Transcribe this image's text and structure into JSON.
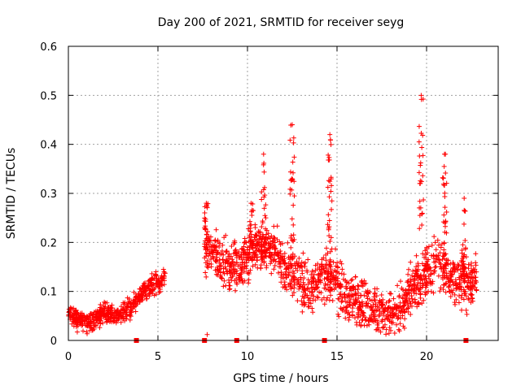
{
  "chart_data": {
    "type": "scatter",
    "title": "Day 200 of 2021, SRMTID for receiver seyg",
    "xlabel": "GPS time / hours",
    "ylabel": "SRMTID / TECUs",
    "xlim": [
      0,
      24
    ],
    "ylim": [
      0,
      0.6
    ],
    "xticks": [
      0,
      5,
      10,
      15,
      20
    ],
    "yticks": [
      0,
      0.1,
      0.2,
      0.3,
      0.4,
      0.5,
      0.6
    ],
    "xtick_labels": [
      "0",
      "5",
      "10",
      "15",
      "20"
    ],
    "ytick_labels": [
      "0",
      "0.1",
      "0.2",
      "0.3",
      "0.4",
      "0.5",
      "0.6"
    ],
    "grid": true,
    "marker": "+",
    "color": "#ff0000",
    "series": [
      {
        "name": "SRMTID",
        "segments": [
          {
            "t0": 0.0,
            "t1": 5.4,
            "trend": [
              [
                0.0,
                0.055
              ],
              [
                0.5,
                0.045
              ],
              [
                1.0,
                0.035
              ],
              [
                1.5,
                0.04
              ],
              [
                2.0,
                0.06
              ],
              [
                2.5,
                0.05
              ],
              [
                3.0,
                0.055
              ],
              [
                3.5,
                0.065
              ],
              [
                4.0,
                0.09
              ],
              [
                4.5,
                0.11
              ],
              [
                5.0,
                0.12
              ],
              [
                5.4,
                0.13
              ]
            ],
            "spread": 0.04,
            "count": 520
          },
          {
            "t0": 7.6,
            "t1": 24.0,
            "trend": [
              [
                7.6,
                0.2
              ],
              [
                8.5,
                0.16
              ],
              [
                9.5,
                0.15
              ],
              [
                10.5,
                0.19
              ],
              [
                11.5,
                0.18
              ],
              [
                12.5,
                0.14
              ],
              [
                13.5,
                0.1
              ],
              [
                14.5,
                0.14
              ],
              [
                15.5,
                0.09
              ],
              [
                16.5,
                0.07
              ],
              [
                17.5,
                0.05
              ],
              [
                18.5,
                0.06
              ],
              [
                19.5,
                0.12
              ],
              [
                20.5,
                0.16
              ],
              [
                21.5,
                0.12
              ],
              [
                22.5,
                0.12
              ],
              [
                22.8,
                0.13
              ]
            ],
            "spread": 0.1,
            "count": 1500
          }
        ],
        "peaks": [
          {
            "x": 10.9,
            "y": 0.38
          },
          {
            "x": 12.5,
            "y": 0.44
          },
          {
            "x": 14.6,
            "y": 0.42
          },
          {
            "x": 19.7,
            "y": 0.5
          },
          {
            "x": 21.0,
            "y": 0.38
          },
          {
            "x": 7.7,
            "y": 0.28
          },
          {
            "x": 10.2,
            "y": 0.28
          },
          {
            "x": 22.1,
            "y": 0.29
          }
        ],
        "outliers": [
          {
            "x": 7.75,
            "y": 0.012
          }
        ]
      }
    ],
    "gap_markers": [
      3.8,
      7.6,
      9.4,
      14.3,
      22.2
    ]
  }
}
